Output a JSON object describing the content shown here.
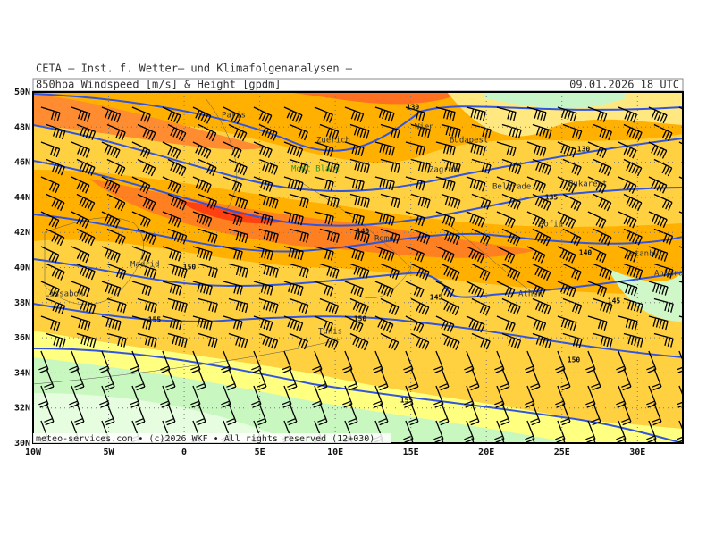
{
  "header": {
    "institute": "CETA – Inst. f. Wetter– und Klimafolgenanalysen –",
    "product": "850hpa Windspeed [m/s] & Height [gpdm]",
    "valid": "09.01.2026 18 UTC"
  },
  "map": {
    "xticks": [
      {
        "value": -10,
        "label": "10W"
      },
      {
        "value": -5,
        "label": "5W"
      },
      0,
      {
        "value": 5,
        "label": "5E"
      },
      {
        "value": 10,
        "label": "10E"
      },
      {
        "value": 15,
        "label": "15E"
      },
      {
        "value": 20,
        "label": "20E"
      },
      {
        "value": 25,
        "label": "25E"
      },
      {
        "value": 30,
        "label": "30E"
      }
    ],
    "yticks": [
      {
        "value": 30,
        "label": "30N"
      },
      {
        "value": 32,
        "label": "32N"
      },
      {
        "value": 34,
        "label": "34N"
      },
      {
        "value": 36,
        "label": "36N"
      },
      {
        "value": 38,
        "label": "38N"
      },
      {
        "value": 40,
        "label": "40N"
      },
      {
        "value": 42,
        "label": "42N"
      },
      {
        "value": 44,
        "label": "44N"
      },
      {
        "value": 46,
        "label": "46N"
      },
      {
        "value": 48,
        "label": "48N"
      },
      {
        "value": 50,
        "label": "50N"
      }
    ],
    "xlim": [
      -10,
      33
    ],
    "ylim": [
      30,
      50
    ],
    "cities": [
      "Paris",
      "Zuerich",
      "Wien",
      "Budapest",
      "Mont Blanc",
      "Zagreb",
      "Belgrade",
      "Bukarest",
      "Madrid",
      "Rome",
      "Sofia",
      "Istanbul",
      "Ankara",
      "Lissabon",
      "Athen",
      "Tunis"
    ],
    "contour_labels": [
      "130",
      "130",
      "135",
      "140",
      "140",
      "145",
      "145",
      "150",
      "150",
      "150",
      "155",
      "155"
    ],
    "footer": "meteo-services.com • (c)2026 WKF • All rights reserved (12+030)"
  }
}
